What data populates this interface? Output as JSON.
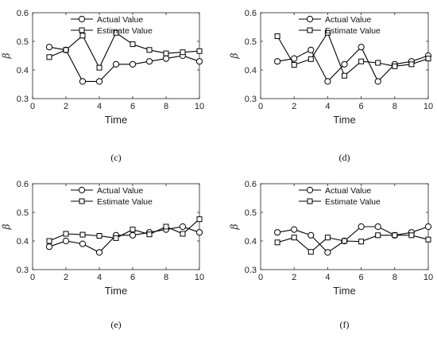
{
  "chart_data": [
    {
      "type": "line",
      "caption": "(c)",
      "xlabel": "Time",
      "ylabel": "β",
      "xlim": [
        0,
        10
      ],
      "ylim": [
        0.3,
        0.6
      ],
      "xticks": [
        0,
        2,
        4,
        6,
        8,
        10
      ],
      "yticks": [
        0.3,
        0.4,
        0.5,
        0.6
      ],
      "grid": false,
      "legend_position": "top-center",
      "series": [
        {
          "name": "Actual Value",
          "marker": "circle",
          "x": [
            1,
            2,
            3,
            4,
            5,
            6,
            7,
            8,
            9,
            10
          ],
          "y": [
            0.48,
            0.47,
            0.36,
            0.36,
            0.42,
            0.42,
            0.43,
            0.44,
            0.45,
            0.43
          ]
        },
        {
          "name": "Estimate Value",
          "marker": "square",
          "x": [
            1,
            2,
            3,
            4,
            5,
            6,
            7,
            8,
            9,
            10
          ],
          "y": [
            0.445,
            0.47,
            0.52,
            0.408,
            0.53,
            0.49,
            0.47,
            0.458,
            0.462,
            0.466
          ]
        }
      ]
    },
    {
      "type": "line",
      "caption": "(d)",
      "xlabel": "Time",
      "ylabel": "β",
      "xlim": [
        0,
        10
      ],
      "ylim": [
        0.3,
        0.6
      ],
      "xticks": [
        0,
        2,
        4,
        6,
        8,
        10
      ],
      "yticks": [
        0.3,
        0.4,
        0.5,
        0.6
      ],
      "grid": false,
      "legend_position": "top-center",
      "series": [
        {
          "name": "Actual Value",
          "marker": "circle",
          "x": [
            1,
            2,
            3,
            4,
            5,
            6,
            7,
            8,
            9,
            10
          ],
          "y": [
            0.43,
            0.44,
            0.47,
            0.36,
            0.42,
            0.48,
            0.36,
            0.42,
            0.43,
            0.45
          ]
        },
        {
          "name": "Estimate Value",
          "marker": "square",
          "x": [
            1,
            2,
            3,
            4,
            5,
            6,
            7,
            8,
            9,
            10
          ],
          "y": [
            0.518,
            0.418,
            0.438,
            0.53,
            0.38,
            0.43,
            0.425,
            0.413,
            0.42,
            0.44
          ]
        }
      ]
    },
    {
      "type": "line",
      "caption": "(e)",
      "xlabel": "Time",
      "ylabel": "β",
      "xlim": [
        0,
        10
      ],
      "ylim": [
        0.3,
        0.6
      ],
      "xticks": [
        0,
        2,
        4,
        6,
        8,
        10
      ],
      "yticks": [
        0.3,
        0.4,
        0.5,
        0.6
      ],
      "grid": false,
      "legend_position": "top-center",
      "series": [
        {
          "name": "Actual Value",
          "marker": "circle",
          "x": [
            1,
            2,
            3,
            4,
            5,
            6,
            7,
            8,
            9,
            10
          ],
          "y": [
            0.38,
            0.4,
            0.39,
            0.36,
            0.42,
            0.42,
            0.43,
            0.44,
            0.45,
            0.43
          ]
        },
        {
          "name": "Estimate Value",
          "marker": "square",
          "x": [
            1,
            2,
            3,
            4,
            5,
            6,
            7,
            8,
            9,
            10
          ],
          "y": [
            0.4,
            0.425,
            0.422,
            0.418,
            0.41,
            0.44,
            0.423,
            0.45,
            0.425,
            0.476
          ]
        }
      ]
    },
    {
      "type": "line",
      "caption": "(f)",
      "xlabel": "Time",
      "ylabel": "β",
      "xlim": [
        0,
        10
      ],
      "ylim": [
        0.3,
        0.6
      ],
      "xticks": [
        0,
        2,
        4,
        6,
        8,
        10
      ],
      "yticks": [
        0.3,
        0.4,
        0.5,
        0.6
      ],
      "grid": false,
      "legend_position": "top-center",
      "series": [
        {
          "name": "Actual Value",
          "marker": "circle",
          "x": [
            1,
            2,
            3,
            4,
            5,
            6,
            7,
            8,
            9,
            10
          ],
          "y": [
            0.43,
            0.44,
            0.42,
            0.36,
            0.4,
            0.45,
            0.45,
            0.42,
            0.43,
            0.45
          ]
        },
        {
          "name": "Estimate Value",
          "marker": "square",
          "x": [
            1,
            2,
            3,
            4,
            5,
            6,
            7,
            8,
            9,
            10
          ],
          "y": [
            0.395,
            0.412,
            0.362,
            0.412,
            0.4,
            0.398,
            0.42,
            0.42,
            0.42,
            0.405
          ]
        }
      ]
    }
  ],
  "colors": {
    "line": "#000000",
    "marker_fill": "#ffffff",
    "axes": "#222222"
  }
}
